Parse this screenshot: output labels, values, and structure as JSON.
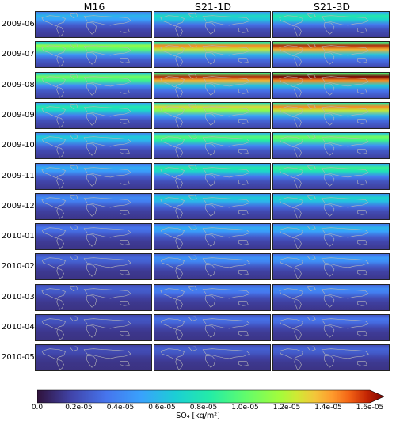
{
  "columns": [
    "M16",
    "S21-1D",
    "S21-3D"
  ],
  "rows": [
    "2009-06",
    "2009-07",
    "2009-08",
    "2009-09",
    "2009-10",
    "2009-11",
    "2009-12",
    "2010-01",
    "2010-02",
    "2010-03",
    "2010-04",
    "2010-05"
  ],
  "intensity": [
    [
      0.3,
      0.4,
      0.45
    ],
    [
      0.65,
      0.85,
      0.95
    ],
    [
      0.6,
      0.95,
      1.0
    ],
    [
      0.45,
      0.75,
      0.85
    ],
    [
      0.35,
      0.55,
      0.6
    ],
    [
      0.28,
      0.45,
      0.5
    ],
    [
      0.2,
      0.35,
      0.38
    ],
    [
      0.15,
      0.28,
      0.3
    ],
    [
      0.12,
      0.22,
      0.24
    ],
    [
      0.1,
      0.18,
      0.2
    ],
    [
      0.08,
      0.14,
      0.15
    ],
    [
      0.06,
      0.1,
      0.11
    ]
  ],
  "colorbar": {
    "ticks": [
      "0.0",
      "0.2e-05",
      "0.4e-05",
      "0.6e-05",
      "0.8e-05",
      "1.0e-05",
      "1.2e-05",
      "1.4e-05",
      "1.6e-05"
    ],
    "min": 0,
    "max": 1.6e-05,
    "colormap": "turbo",
    "label": "SO₄ [kg/m²]"
  }
}
